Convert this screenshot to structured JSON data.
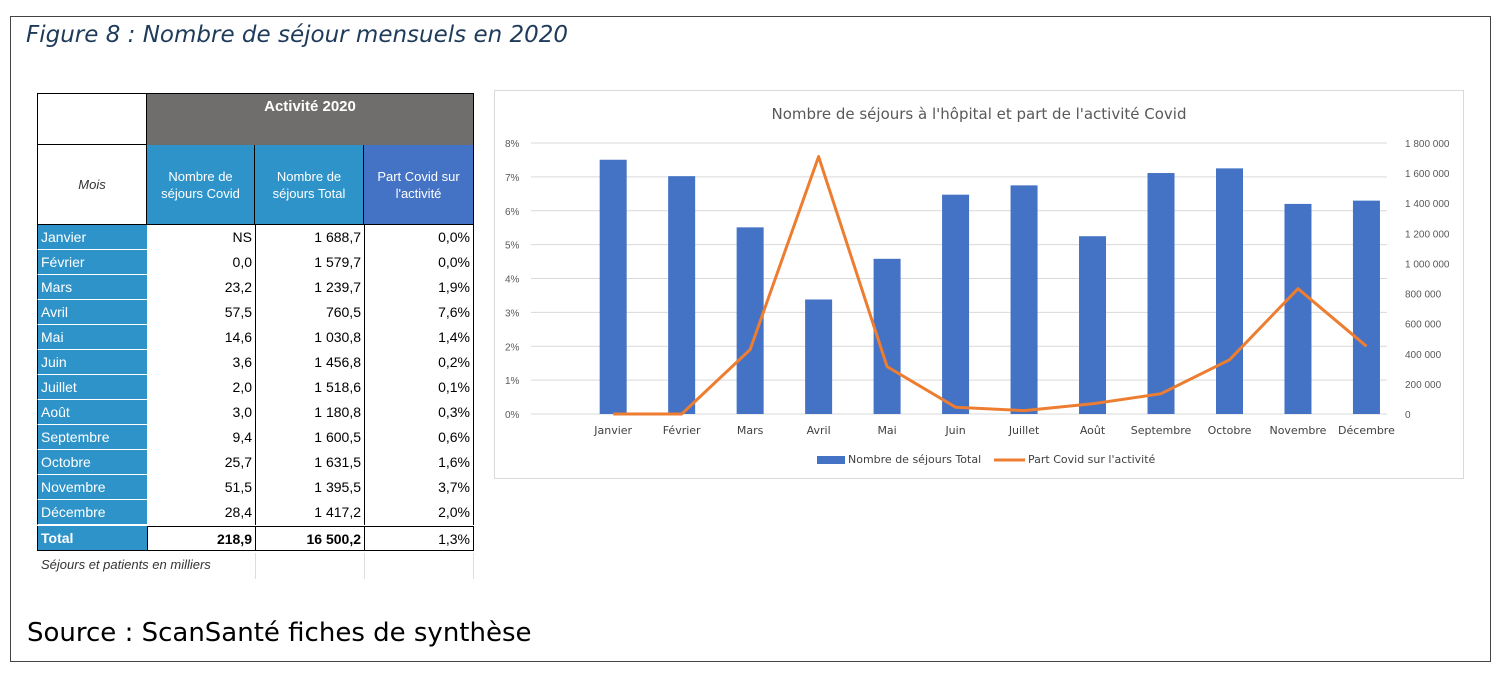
{
  "figure_title": "Figure 8 : Nombre de séjour mensuels en 2020",
  "source": "Source : ScanSanté fiches de synthèse",
  "table": {
    "activity_header": "Activité 2020",
    "col_mois": "Mois",
    "col_covid": "Nombre de séjours Covid",
    "col_total": "Nombre de séjours Total",
    "col_part": "Part Covid sur l'activité",
    "rows": [
      {
        "mois": "Janvier",
        "covid": "NS",
        "total": "1 688,7",
        "part": "0,0%"
      },
      {
        "mois": "Février",
        "covid": "0,0",
        "total": "1 579,7",
        "part": "0,0%"
      },
      {
        "mois": "Mars",
        "covid": "23,2",
        "total": "1 239,7",
        "part": "1,9%"
      },
      {
        "mois": "Avril",
        "covid": "57,5",
        "total": "760,5",
        "part": "7,6%"
      },
      {
        "mois": "Mai",
        "covid": "14,6",
        "total": "1 030,8",
        "part": "1,4%"
      },
      {
        "mois": "Juin",
        "covid": "3,6",
        "total": "1 456,8",
        "part": "0,2%"
      },
      {
        "mois": "Juillet",
        "covid": "2,0",
        "total": "1 518,6",
        "part": "0,1%"
      },
      {
        "mois": "Août",
        "covid": "3,0",
        "total": "1 180,8",
        "part": "0,3%"
      },
      {
        "mois": "Septembre",
        "covid": "9,4",
        "total": "1 600,5",
        "part": "0,6%"
      },
      {
        "mois": "Octobre",
        "covid": "25,7",
        "total": "1 631,5",
        "part": "1,6%"
      },
      {
        "mois": "Novembre",
        "covid": "51,5",
        "total": "1 395,5",
        "part": "3,7%"
      },
      {
        "mois": "Décembre",
        "covid": "28,4",
        "total": "1 417,2",
        "part": "2,0%"
      }
    ],
    "total": {
      "mois": "Total",
      "covid": "218,9",
      "total": "16 500,2",
      "part": "1,3%"
    },
    "note": "Séjours et patients en milliers"
  },
  "colors": {
    "bars": "#4472c4",
    "line": "#ed7d31",
    "table_blue": "#2e93c9",
    "header_gray": "#706e6c"
  },
  "chart_data": {
    "type": "bar",
    "title": "Nombre de séjours à l'hôpital et part de l'activité Covid",
    "categories": [
      "Janvier",
      "Février",
      "Mars",
      "Avril",
      "Mai",
      "Juin",
      "Juillet",
      "Août",
      "Septembre",
      "Octobre",
      "Novembre",
      "Décembre"
    ],
    "series": [
      {
        "name": "Nombre de séjours Total",
        "type": "bar",
        "axis": "right",
        "values": [
          1688700,
          1579700,
          1239700,
          760500,
          1030800,
          1456800,
          1518600,
          1180800,
          1600500,
          1631500,
          1395500,
          1417200
        ]
      },
      {
        "name": "Part Covid sur l'activité",
        "type": "line",
        "axis": "left",
        "values": [
          0.0,
          0.0,
          1.9,
          7.6,
          1.4,
          0.2,
          0.1,
          0.3,
          0.6,
          1.6,
          3.7,
          2.0
        ]
      }
    ],
    "y_left": {
      "ylim": [
        0,
        8
      ],
      "ticks": [
        "0%",
        "1%",
        "2%",
        "3%",
        "4%",
        "5%",
        "6%",
        "7%",
        "8%"
      ]
    },
    "y_right": {
      "ylim": [
        0,
        1800000
      ],
      "ticks": [
        "0",
        "200 000",
        "400 000",
        "600 000",
        "800 000",
        "1 000 000",
        "1 200 000",
        "1 400 000",
        "1 600 000",
        "1 800 000"
      ]
    },
    "grid": true,
    "legend": "bottom"
  }
}
